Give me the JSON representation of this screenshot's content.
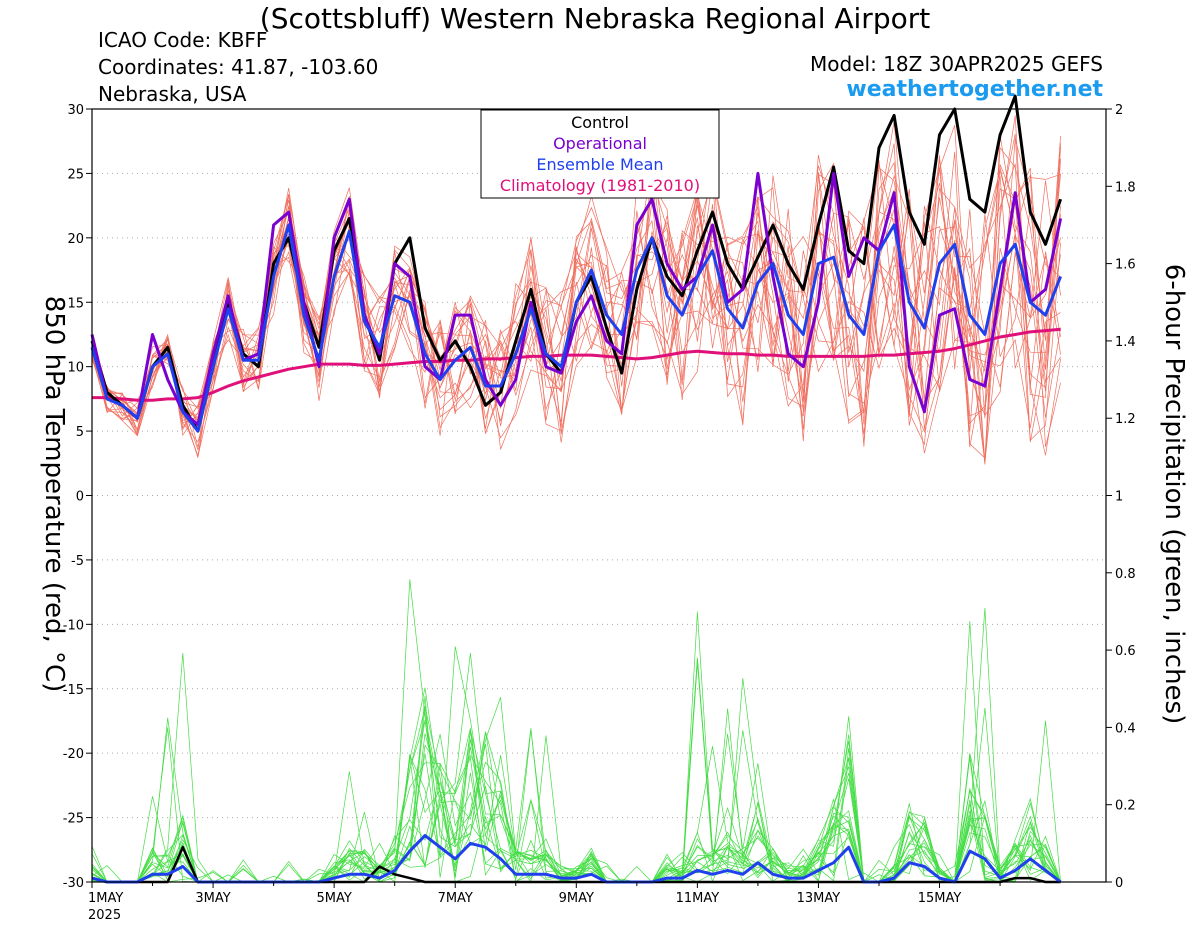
{
  "header": {
    "title": "(Scottsbluff) Western Nebraska Regional Airport",
    "icao": "ICAO Code: KBFF",
    "coords": "Coordinates: 41.87, -103.60",
    "region": "Nebraska, USA",
    "model": "Model: 18Z 30APR2025 GEFS",
    "site": "weathertogether.net"
  },
  "colors": {
    "members_temp": "#f07060",
    "members_precip": "#44dd44",
    "control": "#000000",
    "operational": "#7a00d0",
    "mean": "#2040ee",
    "climatology": "#e0107a",
    "site": "#1a9bf0"
  },
  "chart_data": {
    "type": "line",
    "title": "(Scottsbluff) Western Nebraska Regional Airport",
    "ylabel_left": "850 hPa Temperature (red, °C)",
    "ylabel_right": "6-hour Precipitation (green, inches)",
    "ylim_left": [
      -30,
      30
    ],
    "ylim_right": [
      0,
      2
    ],
    "xlim_days": [
      0,
      16.75
    ],
    "yticks_left": [
      "30",
      "25",
      "20",
      "15",
      "10",
      "5",
      "0",
      "-5",
      "-10",
      "-15",
      "-20",
      "-25",
      "-30"
    ],
    "yticks_right": [
      "2",
      "1.8",
      "1.6",
      "1.4",
      "1.2",
      "1",
      "0.8",
      "0.6",
      "0.4",
      "0.2",
      "0"
    ],
    "xticks": [
      {
        "label": "1MAY",
        "sub": "2025",
        "day": 0
      },
      {
        "label": "3MAY",
        "sub": "",
        "day": 2
      },
      {
        "label": "5MAY",
        "sub": "",
        "day": 4
      },
      {
        "label": "7MAY",
        "sub": "",
        "day": 6
      },
      {
        "label": "9MAY",
        "sub": "",
        "day": 8
      },
      {
        "label": "11MAY",
        "sub": "",
        "day": 10
      },
      {
        "label": "13MAY",
        "sub": "",
        "day": 12
      },
      {
        "label": "15MAY",
        "sub": "",
        "day": 14
      }
    ],
    "legend": [
      "Control",
      "Operational",
      "Ensemble Mean",
      "Climatology (1981-2010)"
    ],
    "legend_placement": "top-center",
    "grid": "dotted horizontal",
    "step_days": 0.25,
    "series": [
      {
        "name": "Control",
        "axis": "left",
        "values": [
          12,
          8,
          7,
          6,
          10,
          11.5,
          7,
          5,
          10,
          15,
          11,
          10,
          18,
          20,
          15,
          11.5,
          19,
          21.5,
          14,
          10.5,
          18,
          20,
          13,
          10.5,
          12,
          10,
          7,
          8,
          12,
          16,
          11,
          9.5,
          15,
          17,
          13,
          9.5,
          16,
          20,
          17,
          15.5,
          19,
          22,
          18,
          16,
          18.5,
          21,
          18,
          16,
          21,
          25.5,
          19,
          18,
          27,
          29.5,
          22,
          19.5,
          28,
          30,
          23,
          22,
          28,
          31,
          22,
          19.5,
          23
        ]
      },
      {
        "name": "Operational",
        "axis": "left",
        "values": [
          12.5,
          7.5,
          7,
          6,
          12.5,
          9,
          6.5,
          5.5,
          11,
          15.5,
          10.5,
          11,
          21,
          22,
          15,
          10,
          20,
          23,
          14,
          11,
          18,
          17,
          10,
          9,
          14,
          14,
          9,
          7,
          9,
          15,
          10,
          9.5,
          13.5,
          15.5,
          12,
          11,
          21,
          23,
          18,
          16,
          17,
          21,
          15,
          16,
          25,
          17,
          11,
          10,
          15,
          25,
          17,
          20,
          19,
          23.5,
          10,
          6.5,
          14,
          14.5,
          9,
          8.5,
          16,
          23.5,
          15,
          16,
          21.5
        ]
      },
      {
        "name": "Ensemble Mean",
        "axis": "left",
        "values": [
          11.5,
          7.5,
          7,
          6,
          10,
          11,
          6.5,
          5,
          10,
          14.5,
          10.5,
          10.5,
          17,
          21,
          14,
          10.5,
          17,
          20.5,
          13.5,
          11.5,
          15.5,
          15,
          11,
          9,
          10.5,
          11.5,
          8.5,
          8.5,
          11,
          14.5,
          11,
          10,
          15,
          17.5,
          14,
          12.5,
          17.5,
          20,
          15.5,
          14,
          17,
          19,
          14.5,
          13,
          16.5,
          18,
          14,
          12.5,
          18,
          18.5,
          14,
          12.5,
          19,
          21,
          15,
          13,
          18,
          19.5,
          14,
          12.5,
          18,
          19.5,
          15,
          14,
          17
        ]
      },
      {
        "name": "Climatology (1981-2010)",
        "axis": "left",
        "values": [
          7.6,
          7.6,
          7.5,
          7.4,
          7.4,
          7.5,
          7.5,
          7.6,
          8.0,
          8.5,
          8.9,
          9.2,
          9.5,
          9.8,
          10.0,
          10.2,
          10.2,
          10.2,
          10.1,
          10.1,
          10.2,
          10.3,
          10.4,
          10.4,
          10.5,
          10.5,
          10.6,
          10.6,
          10.7,
          10.8,
          10.8,
          10.9,
          10.9,
          10.9,
          10.8,
          10.7,
          10.6,
          10.7,
          10.9,
          11.1,
          11.2,
          11.1,
          11.0,
          11.0,
          10.9,
          10.9,
          10.8,
          10.8,
          10.8,
          10.8,
          10.8,
          10.8,
          10.9,
          10.9,
          11.0,
          11.1,
          11.2,
          11.4,
          11.7,
          12.0,
          12.3,
          12.5,
          12.7,
          12.8,
          12.9
        ]
      },
      {
        "name": "Control precip",
        "axis": "right",
        "values": [
          0.01,
          0,
          0,
          0,
          0,
          0,
          0.09,
          0,
          0,
          0,
          0,
          0,
          0,
          0,
          0,
          0,
          0,
          0,
          0,
          0.04,
          0.02,
          0.01,
          0,
          0,
          0,
          0,
          0,
          0,
          0,
          0,
          0,
          0,
          0,
          0,
          0,
          0,
          0,
          0,
          0,
          0,
          0,
          0,
          0,
          0,
          0,
          0,
          0,
          0,
          0,
          0,
          0,
          0,
          0,
          0,
          0,
          0,
          0,
          0,
          0,
          0,
          0,
          0.01,
          0.01,
          0,
          0
        ]
      },
      {
        "name": "Mean precip",
        "axis": "right",
        "values": [
          0.01,
          0,
          0,
          0,
          0.02,
          0.02,
          0.04,
          0,
          0,
          0,
          0,
          0,
          0,
          0,
          0,
          0,
          0.01,
          0.02,
          0.02,
          0.01,
          0.03,
          0.08,
          0.12,
          0.09,
          0.06,
          0.1,
          0.09,
          0.06,
          0.02,
          0.02,
          0.02,
          0.01,
          0.01,
          0.02,
          0,
          0,
          0,
          0,
          0.01,
          0.01,
          0.03,
          0.02,
          0.03,
          0.02,
          0.05,
          0.02,
          0.01,
          0.01,
          0.03,
          0.05,
          0.09,
          0,
          0,
          0.01,
          0.05,
          0.04,
          0.01,
          0,
          0.08,
          0.06,
          0.01,
          0.03,
          0.06,
          0.03,
          0
        ]
      }
    ]
  }
}
